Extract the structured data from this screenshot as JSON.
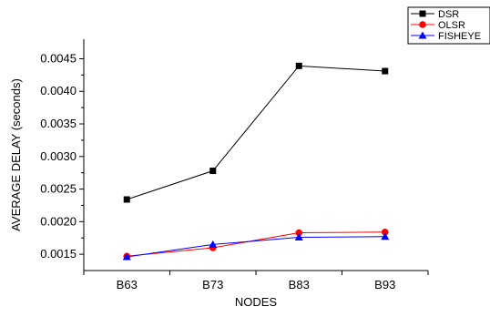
{
  "chart_data": {
    "type": "line",
    "title": "",
    "xlabel": "NODES",
    "ylabel": "AVERAGE DELAY (seconds)",
    "categories": [
      "B63",
      "B73",
      "B83",
      "B93"
    ],
    "ylim": [
      0.00125,
      0.0048
    ],
    "y_ticks": [
      0.0015,
      0.002,
      0.0025,
      0.003,
      0.0035,
      0.004,
      0.0045
    ],
    "y_tick_labels": [
      "0.0015",
      "0.0020",
      "0.0025",
      "0.0030",
      "0.0035",
      "0.0040",
      "0.0045"
    ],
    "grid": false,
    "legend_position": "top-right",
    "series": [
      {
        "name": "DSR",
        "color": "#000000",
        "marker": "square",
        "values": [
          0.00234,
          0.00278,
          0.00439,
          0.00431
        ]
      },
      {
        "name": "OLSR",
        "color": "#ff0000",
        "marker": "circle",
        "values": [
          0.00147,
          0.0016,
          0.00183,
          0.00184
        ]
      },
      {
        "name": "FISHEYE",
        "color": "#0000ff",
        "marker": "triangle",
        "values": [
          0.00146,
          0.00165,
          0.00176,
          0.00177
        ]
      }
    ]
  }
}
